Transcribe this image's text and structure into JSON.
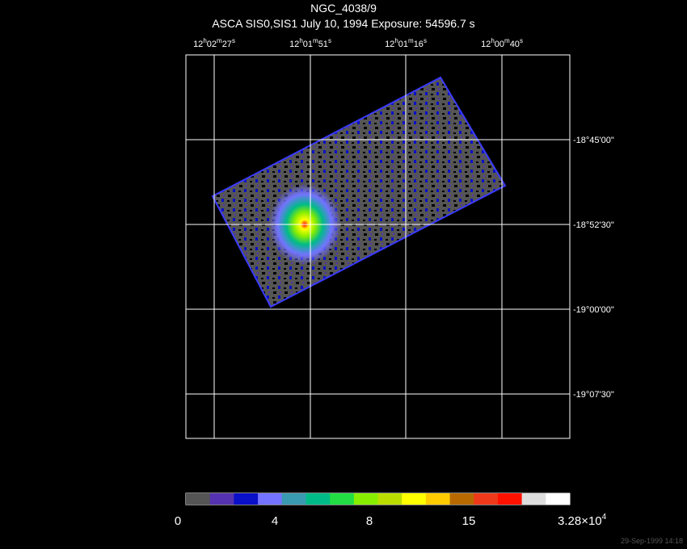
{
  "header": {
    "title": "NGC_4038/9",
    "subtitle": "ASCA SIS0,SIS1 July 10, 1994 Exposure: 54596.7 s"
  },
  "ra_labels": [
    [
      "12",
      "h",
      "02",
      "m",
      "27",
      "s"
    ],
    [
      "12",
      "h",
      "01",
      "m",
      "51",
      "s"
    ],
    [
      "12",
      "h",
      "01",
      "m",
      "16",
      "s"
    ],
    [
      "12",
      "h",
      "00",
      "m",
      "40",
      "s"
    ]
  ],
  "dec_labels": [
    "-18°45'00\"",
    "-18°52'30\"",
    "-19°00'00\"",
    "-19°07'30\""
  ],
  "colorbar": {
    "colors": [
      "#555555",
      "#5533b0",
      "#0a10c8",
      "#7373ff",
      "#3a9ab0",
      "#00bb88",
      "#22dd44",
      "#88ee00",
      "#bbdd00",
      "#ffff00",
      "#ffcc00",
      "#b86a00",
      "#ee3a1a",
      "#ff1100",
      "#dddddd",
      "#ffffff"
    ],
    "labels": [
      "0",
      "4",
      "8",
      "15"
    ],
    "max_label": [
      "3.28×10",
      "4"
    ]
  },
  "footer": "29-Sep-1999 14:18"
}
